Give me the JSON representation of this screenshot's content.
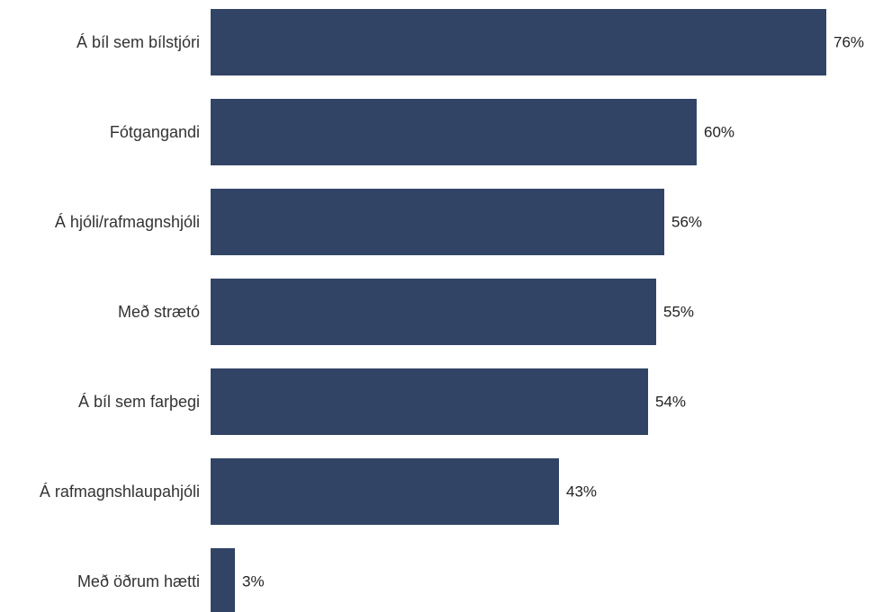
{
  "chart_data": {
    "type": "bar",
    "orientation": "horizontal",
    "categories": [
      "Á bíl sem bílstjóri",
      "Fótgangandi",
      "Á hjóli/rafmagnshjóli",
      "Með strætó",
      "Á bíl sem farþegi",
      "Á rafmagnshlaupahjóli",
      "Með öðrum hætti"
    ],
    "values": [
      76,
      60,
      56,
      55,
      54,
      43,
      3
    ],
    "value_labels": [
      "76%",
      "60%",
      "56%",
      "55%",
      "54%",
      "43%",
      "3%"
    ],
    "xlim": [
      0,
      76
    ],
    "grid": false,
    "legend": "none",
    "bar_color": "#314466"
  }
}
